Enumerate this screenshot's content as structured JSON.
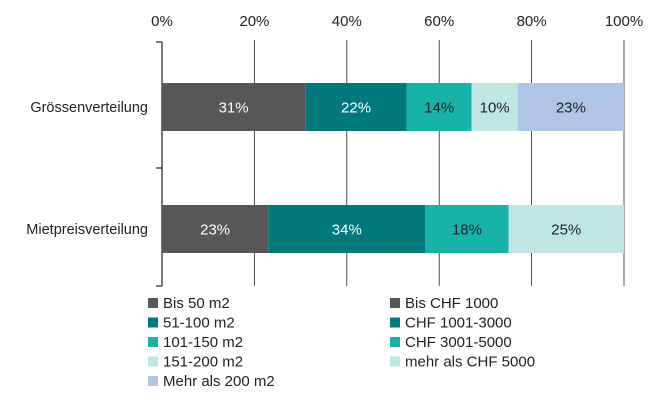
{
  "chart_data": {
    "type": "bar",
    "orientation": "horizontal",
    "stacked": true,
    "percent_axis": true,
    "xlim": [
      0,
      100
    ],
    "x_ticks": [
      "0%",
      "20%",
      "40%",
      "60%",
      "80%",
      "100%"
    ],
    "x_tick_values": [
      0,
      20,
      40,
      60,
      80,
      100
    ],
    "grid": "vertical",
    "categories": [
      "Grössenverteilung",
      "Mietpreisverteilung"
    ],
    "groups": [
      {
        "category": "Grössenverteilung",
        "segments": [
          {
            "name": "Bis 50 m2",
            "value": 31,
            "label": "31%",
            "color": "#575757",
            "label_color": "#ffffff"
          },
          {
            "name": "51-100 m2",
            "value": 22,
            "label": "22%",
            "color": "#007a7c",
            "label_color": "#ffffff"
          },
          {
            "name": "101-150 m2",
            "value": 14,
            "label": "14%",
            "color": "#17b2a8",
            "label_color": "#222222"
          },
          {
            "name": "151-200 m2",
            "value": 10,
            "label": "10%",
            "color": "#bfe6e2",
            "label_color": "#222222"
          },
          {
            "name": "Mehr als 200 m2",
            "value": 23,
            "label": "23%",
            "color": "#aec5e6",
            "label_color": "#222222"
          }
        ]
      },
      {
        "category": "Mietpreisverteilung",
        "segments": [
          {
            "name": "Bis CHF 1000",
            "value": 23,
            "label": "23%",
            "color": "#575757",
            "label_color": "#ffffff"
          },
          {
            "name": "CHF 1001-3000",
            "value": 34,
            "label": "34%",
            "color": "#007a7c",
            "label_color": "#ffffff"
          },
          {
            "name": "CHF 3001-5000",
            "value": 18,
            "label": "18%",
            "color": "#17b2a8",
            "label_color": "#222222"
          },
          {
            "name": "mehr als CHF 5000",
            "value": 25,
            "label": "25%",
            "color": "#bfe6e2",
            "label_color": "#222222"
          }
        ]
      }
    ],
    "legend": {
      "placement": "bottom",
      "columns": [
        [
          {
            "label": "Bis 50 m2",
            "color": "#575757"
          },
          {
            "label": "51-100 m2",
            "color": "#007a7c"
          },
          {
            "label": "101-150 m2",
            "color": "#17b2a8"
          },
          {
            "label": "151-200 m2",
            "color": "#bfe6e2"
          },
          {
            "label": "Mehr als 200 m2",
            "color": "#aec5e6"
          }
        ],
        [
          {
            "label": "Bis CHF 1000",
            "color": "#575757"
          },
          {
            "label": "CHF 1001-3000",
            "color": "#007a7c"
          },
          {
            "label": "CHF 3001-5000",
            "color": "#17b2a8"
          },
          {
            "label": "mehr als CHF 5000",
            "color": "#bfe6e2"
          }
        ]
      ]
    }
  }
}
